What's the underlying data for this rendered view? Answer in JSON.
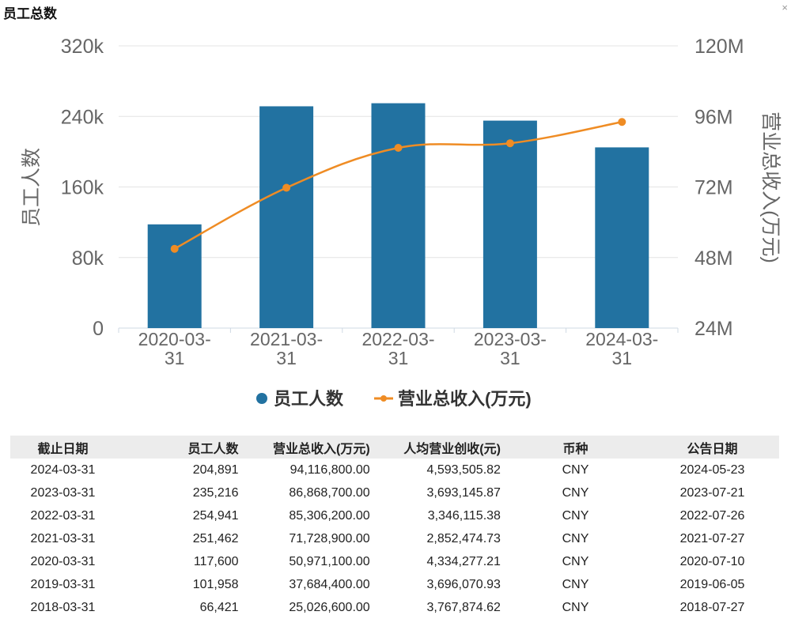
{
  "header": {
    "title": "员工总数",
    "close": "×"
  },
  "chart_data": {
    "type": "bar",
    "categories": [
      "2020-03-31",
      "2021-03-31",
      "2022-03-31",
      "2023-03-31",
      "2024-03-31"
    ],
    "series": [
      {
        "name": "员工人数",
        "kind": "bar",
        "axis": "left",
        "color": "#2272a1",
        "values": [
          117600,
          251462,
          254941,
          235216,
          204891
        ]
      },
      {
        "name": "营业总收入(万元)",
        "kind": "line",
        "axis": "right",
        "color": "#ef8c24",
        "values": [
          50971100,
          71728900,
          85306200,
          86868700,
          94116800
        ]
      }
    ],
    "ylabel": "员工人数",
    "y2label": "营业总收入(万元)",
    "ylim": [
      0,
      320000
    ],
    "y2lim": [
      24000000,
      120000000
    ],
    "yticks": [
      "0",
      "80k",
      "160k",
      "240k",
      "320k"
    ],
    "y2ticks": [
      "24M",
      "48M",
      "72M",
      "96M",
      "120M"
    ],
    "grid": true,
    "legend": "bottom-center"
  },
  "table": {
    "headers": [
      "截止日期",
      "员工人数",
      "营业总收入(万元)",
      "人均营业创收(元)",
      "币种",
      "公告日期"
    ],
    "rows": [
      [
        "2024-03-31",
        "204,891",
        "94,116,800.00",
        "4,593,505.82",
        "CNY",
        "2024-05-23"
      ],
      [
        "2023-03-31",
        "235,216",
        "86,868,700.00",
        "3,693,145.87",
        "CNY",
        "2023-07-21"
      ],
      [
        "2022-03-31",
        "254,941",
        "85,306,200.00",
        "3,346,115.38",
        "CNY",
        "2022-07-26"
      ],
      [
        "2021-03-31",
        "251,462",
        "71,728,900.00",
        "2,852,474.73",
        "CNY",
        "2021-07-27"
      ],
      [
        "2020-03-31",
        "117,600",
        "50,971,100.00",
        "4,334,277.21",
        "CNY",
        "2020-07-10"
      ],
      [
        "2019-03-31",
        "101,958",
        "37,684,400.00",
        "3,696,070.93",
        "CNY",
        "2019-06-05"
      ],
      [
        "2018-03-31",
        "66,421",
        "25,026,600.00",
        "3,767,874.62",
        "CNY",
        "2018-07-27"
      ]
    ]
  }
}
